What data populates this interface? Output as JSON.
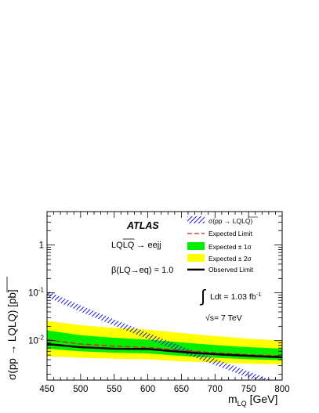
{
  "chart_data": {
    "type": "line",
    "experiment_label": "ATLAS",
    "process_label": "LQ̅L̅Q̅ → eejj",
    "process_main": "LQ",
    "process_bar": "LQ",
    "process_tail": " → eejj",
    "beta_label": "β(LQ→eq) = 1.0",
    "lumi_integral": "∫",
    "lumi_label": "Ldt = 1.03 fb",
    "lumi_exp": "-1",
    "energy_label": "√s= 7 TeV",
    "xlabel_main": "m",
    "xlabel_sub": "LQ",
    "xlabel_unit": " [GeV]",
    "ylabel_pre": "σ(pp → LQ",
    "ylabel_bar": "LQ",
    "ylabel_post": ") [pb]",
    "xlim": [
      450,
      800
    ],
    "ylim": [
      0.0015,
      5
    ],
    "yscale": "log",
    "x_ticks": [
      450,
      500,
      550,
      600,
      650,
      700,
      750,
      800
    ],
    "x_tick_labels": [
      "450",
      "500",
      "550",
      "600",
      "650",
      "700",
      "750",
      "800"
    ],
    "y_ticks": [
      {
        "value": 1,
        "label": "1",
        "exp": ""
      },
      {
        "value": 0.1,
        "label": "10",
        "exp": "-1"
      },
      {
        "value": 0.01,
        "label": "10",
        "exp": "-2"
      }
    ],
    "legend": {
      "position": "top-right",
      "entries": [
        {
          "key": "theory",
          "label_pre": "σ(pp → LQ",
          "label_bar": "LQ",
          "label_post": ")"
        },
        {
          "key": "expected",
          "label": "Expected Limit"
        },
        {
          "key": "band1",
          "label": "Expected ± 1σ"
        },
        {
          "key": "band2",
          "label": "Expected ± 2σ"
        },
        {
          "key": "observed",
          "label": "Observed Limit"
        }
      ]
    },
    "x": [
      450,
      500,
      550,
      600,
      650,
      700,
      750,
      800
    ],
    "series": [
      {
        "key": "theory",
        "values": [
          0.095,
          0.047,
          0.024,
          0.0125,
          0.0066,
          0.0036,
          0.00195,
          0.00108
        ]
      },
      {
        "key": "expected",
        "values": [
          0.0105,
          0.0085,
          0.0077,
          0.0072,
          0.0063,
          0.0056,
          0.0051,
          0.0048
        ]
      },
      {
        "key": "observed",
        "values": [
          0.0085,
          0.0073,
          0.0068,
          0.0067,
          0.0058,
          0.0052,
          0.0048,
          0.0045
        ]
      }
    ],
    "bands": [
      {
        "key": "band2",
        "lower": [
          0.0047,
          0.0044,
          0.0042,
          0.0041,
          0.0037,
          0.0035,
          0.0033,
          0.0032
        ],
        "upper": [
          0.026,
          0.021,
          0.0185,
          0.017,
          0.0145,
          0.0125,
          0.011,
          0.01
        ]
      },
      {
        "key": "band1",
        "lower": [
          0.0068,
          0.006,
          0.0056,
          0.0054,
          0.0048,
          0.0044,
          0.0041,
          0.0039
        ],
        "upper": [
          0.0165,
          0.013,
          0.0115,
          0.0105,
          0.0092,
          0.0081,
          0.0073,
          0.0068
        ]
      }
    ],
    "colors": {
      "theory": "#1a1ad8",
      "expected": "#cc2222",
      "observed": "#000000",
      "band1": "#00ee00",
      "band2": "#ffff00",
      "theory_band": "#3030ff"
    }
  }
}
